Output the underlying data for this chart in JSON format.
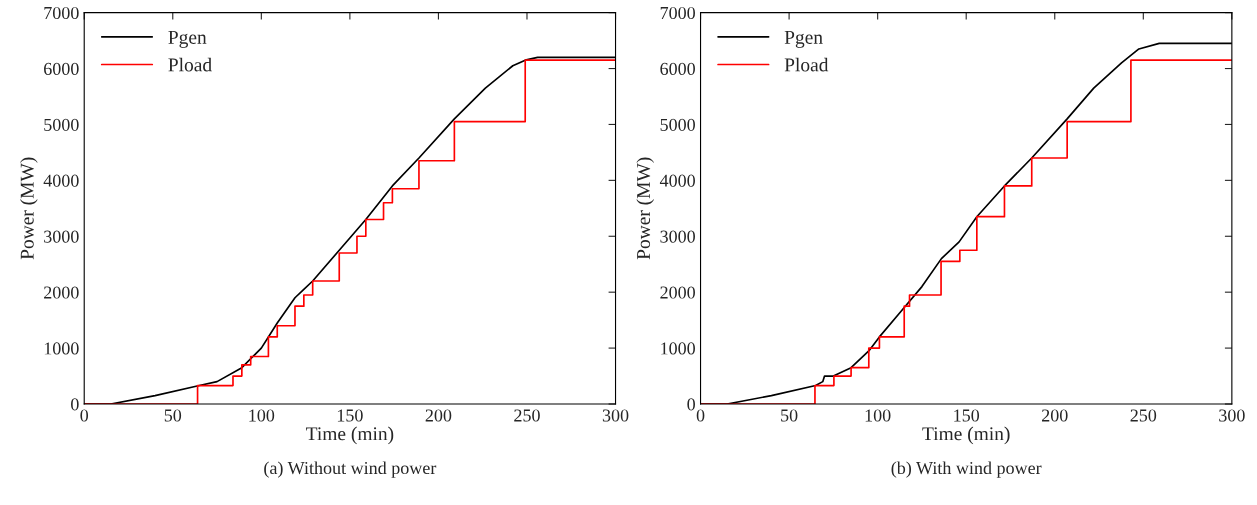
{
  "chart_data": [
    {
      "type": "line",
      "title": "(a) Without wind power",
      "xlabel": "Time (min)",
      "ylabel": "Power (MW)",
      "xlim": [
        0,
        300
      ],
      "ylim": [
        0,
        7000
      ],
      "xticks": [
        0,
        50,
        100,
        150,
        200,
        250,
        300
      ],
      "yticks": [
        0,
        1000,
        2000,
        3000,
        4000,
        5000,
        6000,
        7000
      ],
      "grid": false,
      "legend": "top left",
      "series": [
        {
          "name": "Pgen",
          "color": "#000000",
          "x": [
            0,
            15,
            40,
            65,
            75,
            89,
            100,
            109,
            119,
            124,
            129,
            144,
            159,
            174,
            189,
            209,
            226.5,
            242,
            249,
            256,
            300
          ],
          "values": [
            0,
            0,
            150,
            330,
            400,
            650,
            1000,
            1450,
            1900,
            2050,
            2200,
            2750,
            3300,
            3900,
            4400,
            5100,
            5650,
            6050,
            6150,
            6200,
            6200
          ]
        },
        {
          "name": "Pload",
          "color": "#ff0000",
          "type": "step",
          "x": [
            0,
            64,
            84,
            89,
            94,
            104,
            109,
            119,
            124,
            129,
            144,
            154,
            159,
            169,
            174,
            189,
            209,
            249,
            300
          ],
          "values": [
            0,
            330,
            500,
            700,
            850,
            1200,
            1400,
            1750,
            1950,
            2200,
            2700,
            3000,
            3300,
            3600,
            3850,
            4350,
            5050,
            6150,
            6150
          ]
        }
      ]
    },
    {
      "type": "line",
      "title": "(b) With wind power",
      "xlabel": "Time (min)",
      "ylabel": "Power (MW)",
      "xlim": [
        0,
        300
      ],
      "ylim": [
        0,
        7000
      ],
      "xticks": [
        0,
        50,
        100,
        150,
        200,
        250,
        300
      ],
      "yticks": [
        0,
        1000,
        2000,
        3000,
        4000,
        5000,
        6000,
        7000
      ],
      "grid": false,
      "legend": "top left",
      "series": [
        {
          "name": "Pgen",
          "color": "#000000",
          "x": [
            0,
            15,
            40,
            65,
            69,
            70,
            75,
            85,
            95,
            101,
            113,
            125,
            136,
            146,
            156,
            171.6,
            187,
            207,
            222,
            237.7,
            247.5,
            259,
            300
          ],
          "values": [
            0,
            0,
            150,
            330,
            400,
            500,
            500,
            650,
            950,
            1200,
            1650,
            2100,
            2600,
            2900,
            3350,
            3900,
            4400,
            5100,
            5650,
            6100,
            6350,
            6450,
            6450
          ]
        },
        {
          "name": "Pload",
          "color": "#ff0000",
          "type": "step",
          "x": [
            0,
            64.6,
            75.3,
            85,
            95,
            101,
            115,
            118,
            135.8,
            146.4,
            156,
            171.6,
            187,
            207,
            243,
            300
          ],
          "values": [
            0,
            330,
            500,
            650,
            1000,
            1200,
            1750,
            1950,
            2550,
            2750,
            3350,
            3900,
            4400,
            5050,
            6150,
            6150
          ]
        }
      ]
    }
  ]
}
